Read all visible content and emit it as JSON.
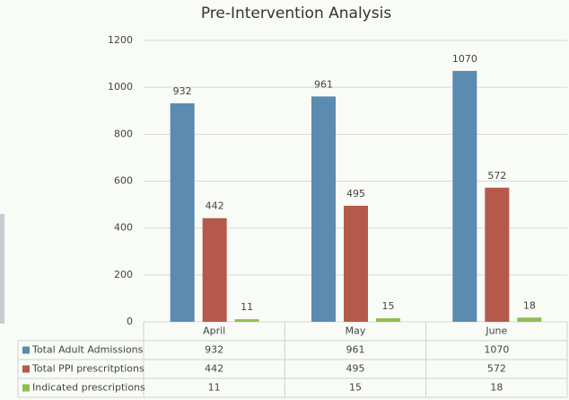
{
  "chart_data": {
    "type": "bar",
    "title": "Pre-Intervention Analysis",
    "categories": [
      "April",
      "May",
      "June"
    ],
    "series": [
      {
        "name": "Total Adult Admissions",
        "color": "#5b8bb0",
        "values": [
          932,
          961,
          1070
        ]
      },
      {
        "name": "Total PPI prescritptions",
        "color": "#b5594b",
        "values": [
          442,
          495,
          572
        ]
      },
      {
        "name": "Indicated prescriptions",
        "color": "#8ebf4c",
        "values": [
          11,
          15,
          18
        ]
      }
    ],
    "ylim": [
      0,
      1200
    ],
    "yticks": [
      0,
      200,
      400,
      600,
      800,
      1000,
      1200
    ],
    "grid": true
  }
}
